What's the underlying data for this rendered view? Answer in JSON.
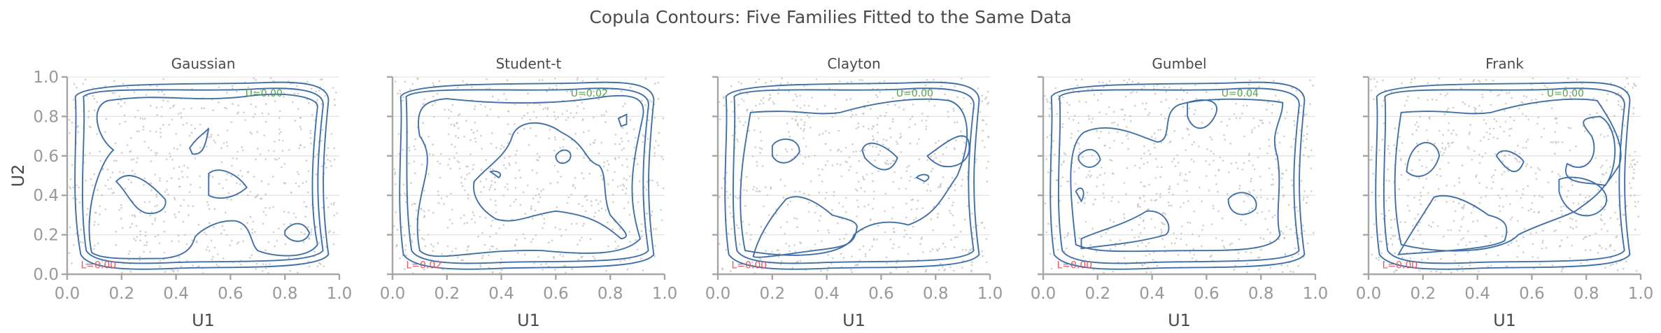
{
  "figure": {
    "suptitle": "Copula Contours: Five Families Fitted to the Same Data",
    "ylabel": "U2",
    "xlabel": "U1"
  },
  "colors": {
    "contour": "#4170a6",
    "scatter": "#bdbdbd",
    "upper_annotation": "#55a14a",
    "lower_annotation": "#e5555f",
    "spine": "#a6a6a6",
    "grid": "#e3e3e3"
  },
  "chart_data": [
    {
      "type": "contour",
      "title": "Gaussian",
      "xlabel": "U1",
      "ylabel": "U2",
      "xlim": [
        0,
        1
      ],
      "ylim": [
        0,
        1
      ],
      "xticks": [
        "0.0",
        "0.2",
        "0.4",
        "0.6",
        "0.8",
        "1.0"
      ],
      "yticks": [
        "0.0",
        "0.2",
        "0.4",
        "0.6",
        "0.8",
        "1.0"
      ],
      "grid": "horizontal",
      "overlay": "uniform scatter of pseudo-observations (grey)",
      "annotations": {
        "upper_tail": "U=0.00",
        "lower_tail": "L=0.00"
      }
    },
    {
      "type": "contour",
      "title": "Student-t",
      "xlabel": "U1",
      "ylabel": "",
      "xlim": [
        0,
        1
      ],
      "ylim": [
        0,
        1
      ],
      "xticks": [
        "0.0",
        "0.2",
        "0.4",
        "0.6",
        "0.8",
        "1.0"
      ],
      "grid": "horizontal",
      "annotations": {
        "upper_tail": "U=0.02",
        "lower_tail": "L=0.02"
      }
    },
    {
      "type": "contour",
      "title": "Clayton",
      "xlabel": "U1",
      "ylabel": "",
      "xlim": [
        0,
        1
      ],
      "ylim": [
        0,
        1
      ],
      "xticks": [
        "0.0",
        "0.2",
        "0.4",
        "0.6",
        "0.8",
        "1.0"
      ],
      "grid": "horizontal",
      "annotations": {
        "upper_tail": "U=0.00",
        "lower_tail": "L=0.00"
      }
    },
    {
      "type": "contour",
      "title": "Gumbel",
      "xlabel": "U1",
      "ylabel": "",
      "xlim": [
        0,
        1
      ],
      "ylim": [
        0,
        1
      ],
      "xticks": [
        "0.0",
        "0.2",
        "0.4",
        "0.6",
        "0.8",
        "1.0"
      ],
      "grid": "horizontal",
      "annotations": {
        "upper_tail": "U=0.04",
        "lower_tail": "L=0.00"
      }
    },
    {
      "type": "contour",
      "title": "Frank",
      "xlabel": "U1",
      "ylabel": "",
      "xlim": [
        0,
        1
      ],
      "ylim": [
        0,
        1
      ],
      "xticks": [
        "0.0",
        "0.2",
        "0.4",
        "0.6",
        "0.8",
        "1.0"
      ],
      "grid": "horizontal",
      "annotations": {
        "upper_tail": "U=0.00",
        "lower_tail": "L=0.00"
      }
    }
  ],
  "ticks": [
    "0.0",
    "0.2",
    "0.4",
    "0.6",
    "0.8",
    "1.0"
  ]
}
